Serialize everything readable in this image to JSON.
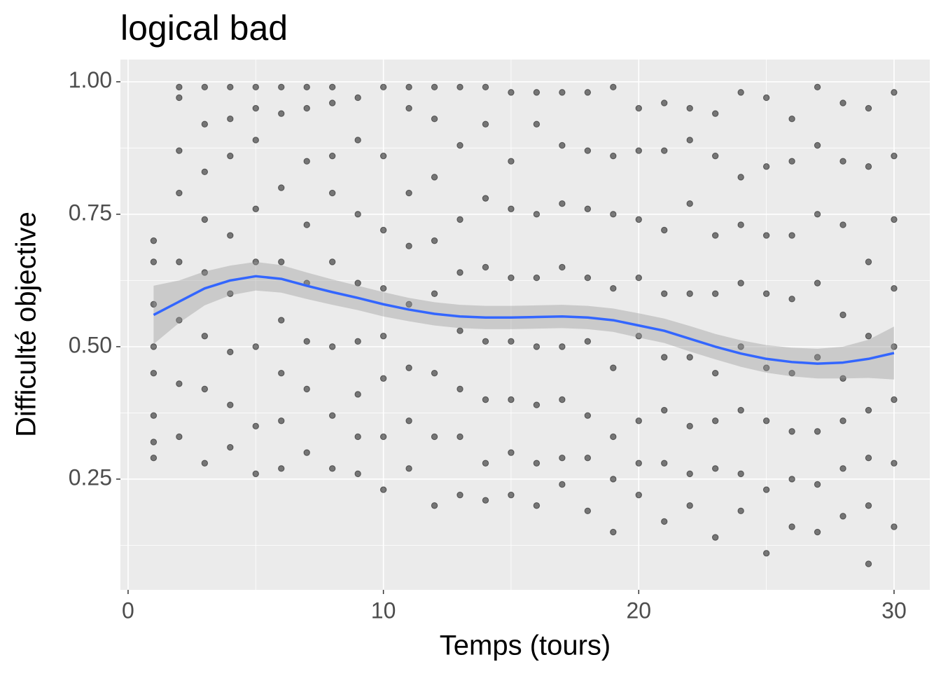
{
  "chart_data": {
    "type": "scatter",
    "title": "logical bad",
    "x_label": "Temps (tours)",
    "y_label": "Difficulté objective",
    "xlim": [
      -0.3,
      31.4
    ],
    "ylim": [
      0.041,
      1.042
    ],
    "xticks": [
      0,
      10,
      20,
      30
    ],
    "yticks": [
      0.25,
      {
        "value": 0.5,
        "label": "0.50"
      },
      0.75,
      {
        "value": 1,
        "label": "1.00"
      }
    ],
    "x_minor_breaks": [
      5,
      15,
      25
    ],
    "y_minor_breaks": [
      0.125,
      0.375,
      0.625,
      0.875
    ],
    "grid": true,
    "points": {
      "color": "#000000",
      "alpha": 0.5,
      "x": [
        1,
        1,
        1,
        1,
        1,
        1,
        1,
        1,
        2,
        2,
        2,
        2,
        2,
        2,
        2,
        2,
        3,
        3,
        3,
        3,
        3,
        3,
        3,
        3,
        4,
        4,
        4,
        4,
        4,
        4,
        4,
        4,
        5,
        5,
        5,
        5,
        5,
        5,
        5,
        5,
        6,
        6,
        6,
        6,
        6,
        6,
        6,
        6,
        7,
        7,
        7,
        7,
        7,
        7,
        7,
        7,
        8,
        8,
        8,
        8,
        8,
        8,
        8,
        8,
        9,
        9,
        9,
        9,
        9,
        9,
        9,
        9,
        10,
        10,
        10,
        10,
        10,
        10,
        10,
        10,
        11,
        11,
        11,
        11,
        11,
        11,
        11,
        11,
        12,
        12,
        12,
        12,
        12,
        12,
        12,
        12,
        13,
        13,
        13,
        13,
        13,
        13,
        13,
        13,
        14,
        14,
        14,
        14,
        14,
        14,
        14,
        14,
        15,
        15,
        15,
        15,
        15,
        15,
        15,
        15,
        16,
        16,
        16,
        16,
        16,
        16,
        16,
        16,
        17,
        17,
        17,
        17,
        17,
        17,
        17,
        17,
        18,
        18,
        18,
        18,
        18,
        18,
        18,
        18,
        19,
        19,
        19,
        19,
        19,
        19,
        19,
        19,
        20,
        20,
        20,
        20,
        20,
        20,
        20,
        20,
        21,
        21,
        21,
        21,
        21,
        21,
        21,
        21,
        22,
        22,
        22,
        22,
        22,
        22,
        22,
        22,
        23,
        23,
        23,
        23,
        23,
        23,
        23,
        23,
        24,
        24,
        24,
        24,
        24,
        24,
        24,
        24,
        25,
        25,
        25,
        25,
        25,
        25,
        25,
        25,
        26,
        26,
        26,
        26,
        26,
        26,
        26,
        26,
        27,
        27,
        27,
        27,
        27,
        27,
        27,
        27,
        28,
        28,
        28,
        28,
        28,
        28,
        28,
        28,
        29,
        29,
        29,
        29,
        29,
        29,
        29,
        29,
        30,
        30,
        30,
        30,
        30,
        30,
        30,
        30
      ],
      "values": [
        0.7,
        0.66,
        0.58,
        0.5,
        0.45,
        0.37,
        0.32,
        0.29,
        0.99,
        0.97,
        0.87,
        0.79,
        0.66,
        0.55,
        0.43,
        0.33,
        0.99,
        0.92,
        0.83,
        0.74,
        0.64,
        0.52,
        0.42,
        0.28,
        0.99,
        0.93,
        0.86,
        0.71,
        0.6,
        0.49,
        0.39,
        0.31,
        0.99,
        0.95,
        0.89,
        0.76,
        0.66,
        0.5,
        0.35,
        0.26,
        0.99,
        0.94,
        0.8,
        0.66,
        0.55,
        0.45,
        0.36,
        0.27,
        0.99,
        0.95,
        0.85,
        0.73,
        0.62,
        0.51,
        0.42,
        0.3,
        0.99,
        0.96,
        0.86,
        0.79,
        0.66,
        0.5,
        0.37,
        0.27,
        0.97,
        0.89,
        0.75,
        0.62,
        0.51,
        0.41,
        0.33,
        0.26,
        0.99,
        0.86,
        0.72,
        0.61,
        0.52,
        0.44,
        0.33,
        0.23,
        0.99,
        0.95,
        0.79,
        0.69,
        0.58,
        0.46,
        0.36,
        0.27,
        0.99,
        0.93,
        0.82,
        0.7,
        0.6,
        0.45,
        0.33,
        0.2,
        0.99,
        0.88,
        0.74,
        0.64,
        0.53,
        0.42,
        0.33,
        0.22,
        0.99,
        0.92,
        0.78,
        0.65,
        0.51,
        0.4,
        0.28,
        0.21,
        0.98,
        0.85,
        0.76,
        0.63,
        0.51,
        0.4,
        0.3,
        0.22,
        0.98,
        0.92,
        0.75,
        0.63,
        0.5,
        0.39,
        0.28,
        0.2,
        0.98,
        0.88,
        0.77,
        0.65,
        0.5,
        0.4,
        0.29,
        0.24,
        0.98,
        0.87,
        0.76,
        0.63,
        0.51,
        0.37,
        0.29,
        0.19,
        0.99,
        0.86,
        0.75,
        0.61,
        0.46,
        0.33,
        0.25,
        0.15,
        0.95,
        0.87,
        0.74,
        0.63,
        0.52,
        0.36,
        0.28,
        0.22,
        0.96,
        0.87,
        0.72,
        0.6,
        0.48,
        0.38,
        0.28,
        0.17,
        0.95,
        0.89,
        0.77,
        0.6,
        0.48,
        0.35,
        0.26,
        0.2,
        0.94,
        0.86,
        0.71,
        0.6,
        0.45,
        0.36,
        0.27,
        0.14,
        0.98,
        0.82,
        0.73,
        0.62,
        0.5,
        0.38,
        0.26,
        0.19,
        0.97,
        0.84,
        0.71,
        0.6,
        0.46,
        0.36,
        0.23,
        0.11,
        0.93,
        0.85,
        0.71,
        0.59,
        0.45,
        0.34,
        0.25,
        0.16,
        0.99,
        0.88,
        0.75,
        0.62,
        0.48,
        0.34,
        0.24,
        0.15,
        0.96,
        0.85,
        0.73,
        0.56,
        0.44,
        0.36,
        0.27,
        0.18,
        0.95,
        0.84,
        0.66,
        0.52,
        0.38,
        0.29,
        0.2,
        0.09,
        0.98,
        0.86,
        0.74,
        0.61,
        0.5,
        0.4,
        0.28,
        0.16
      ]
    },
    "smooth": {
      "color": "#3366ff",
      "fill": "#999999",
      "x": [
        1,
        2,
        3,
        4,
        5,
        6,
        7,
        8,
        9,
        10,
        11,
        12,
        13,
        14,
        15,
        16,
        17,
        18,
        19,
        20,
        21,
        22,
        23,
        24,
        25,
        26,
        27,
        28,
        29,
        30
      ],
      "values": [
        0.56,
        0.585,
        0.61,
        0.625,
        0.633,
        0.628,
        0.615,
        0.603,
        0.592,
        0.58,
        0.57,
        0.562,
        0.557,
        0.555,
        0.555,
        0.556,
        0.557,
        0.555,
        0.55,
        0.54,
        0.53,
        0.515,
        0.5,
        0.487,
        0.477,
        0.471,
        0.468,
        0.47,
        0.477,
        0.488
      ],
      "upper": [
        0.615,
        0.625,
        0.642,
        0.653,
        0.66,
        0.654,
        0.64,
        0.627,
        0.615,
        0.603,
        0.592,
        0.584,
        0.579,
        0.577,
        0.577,
        0.578,
        0.579,
        0.577,
        0.572,
        0.563,
        0.553,
        0.539,
        0.524,
        0.512,
        0.503,
        0.498,
        0.496,
        0.5,
        0.513,
        0.538
      ],
      "lower": [
        0.505,
        0.545,
        0.578,
        0.597,
        0.606,
        0.602,
        0.59,
        0.579,
        0.569,
        0.557,
        0.548,
        0.54,
        0.535,
        0.533,
        0.533,
        0.534,
        0.535,
        0.533,
        0.528,
        0.517,
        0.507,
        0.491,
        0.476,
        0.462,
        0.451,
        0.444,
        0.44,
        0.44,
        0.441,
        0.438
      ]
    }
  }
}
